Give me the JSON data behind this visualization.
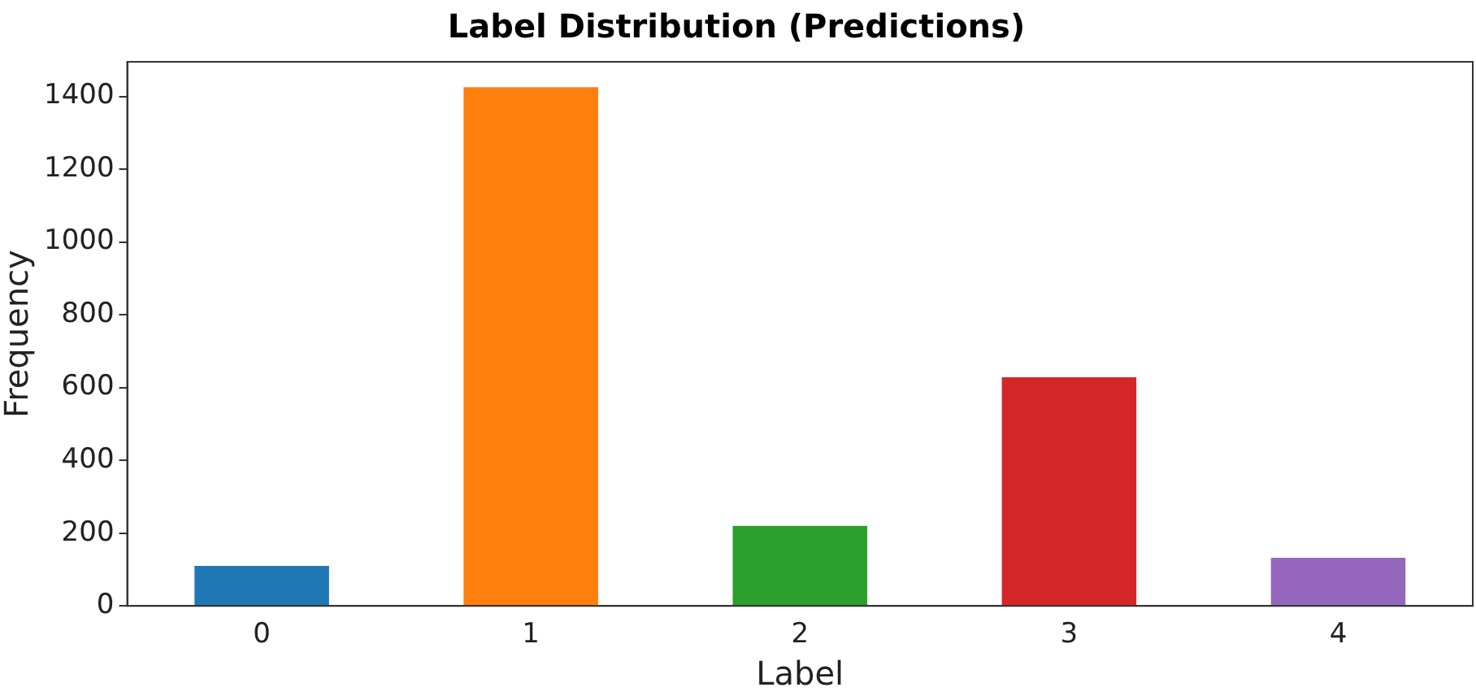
{
  "chart_data": {
    "type": "bar",
    "title": "Label Distribution (Predictions)",
    "xlabel": "Label",
    "ylabel": "Frequency",
    "categories": [
      "0",
      "1",
      "2",
      "3",
      "4"
    ],
    "values": [
      110,
      1425,
      220,
      628,
      132
    ],
    "colors": [
      "#1f77b4",
      "#ff7f0e",
      "#2ca02c",
      "#d62728",
      "#9467bd"
    ],
    "ylim": [
      0,
      1495
    ],
    "yticks": [
      0,
      200,
      400,
      600,
      800,
      1000,
      1200,
      1400
    ],
    "grid": false,
    "legend": false
  }
}
